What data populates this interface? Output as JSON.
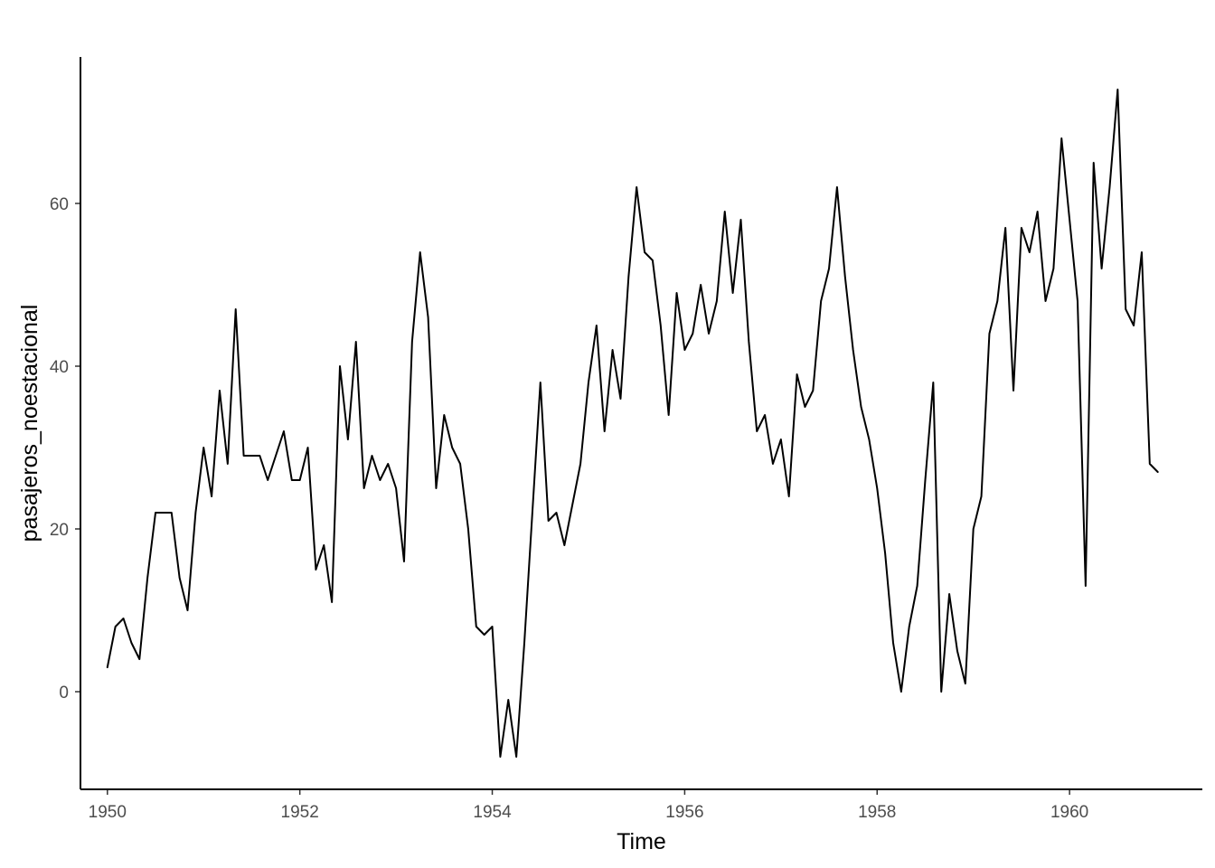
{
  "chart_data": {
    "type": "line",
    "title": "",
    "xlabel": "Time",
    "ylabel": "pasajeros_noestacional",
    "xlim": [
      1949.72,
      1961.38
    ],
    "ylim": [
      -12,
      78
    ],
    "x_ticks": [
      1950,
      1952,
      1954,
      1956,
      1958,
      1960
    ],
    "x_tick_labels": [
      "1950",
      "1952",
      "1954",
      "1956",
      "1958",
      "1960"
    ],
    "y_ticks": [
      0,
      20,
      40,
      60
    ],
    "y_tick_labels": [
      "0",
      "20",
      "40",
      "60"
    ],
    "grid": false,
    "x_start": 1950,
    "frequency": 12,
    "series": [
      {
        "values": [
          3,
          8,
          9,
          6,
          4,
          14,
          22,
          22,
          22,
          14,
          10,
          22,
          30,
          24,
          37,
          28,
          47,
          29,
          29,
          29,
          26,
          29,
          32,
          26,
          26,
          30,
          15,
          18,
          11,
          40,
          31,
          43,
          25,
          29,
          26,
          28,
          25,
          16,
          43,
          54,
          46,
          25,
          34,
          30,
          28,
          20,
          8,
          7,
          8,
          -8,
          -1,
          -8,
          6,
          22,
          38,
          21,
          22,
          18,
          23,
          28,
          38,
          45,
          32,
          42,
          36,
          51,
          62,
          54,
          53,
          45,
          34,
          49,
          42,
          44,
          50,
          44,
          48,
          59,
          49,
          58,
          43,
          32,
          34,
          28,
          31,
          24,
          39,
          35,
          37,
          48,
          52,
          62,
          51,
          42,
          35,
          31,
          25,
          17,
          6,
          0,
          8,
          13,
          26,
          38,
          0,
          12,
          5,
          1,
          20,
          24,
          44,
          48,
          57,
          37,
          57,
          54,
          59,
          48,
          52,
          68,
          58,
          48,
          13,
          65,
          52,
          62,
          74,
          47,
          45,
          54,
          28,
          27
        ]
      }
    ],
    "colors": {
      "line": "#000000",
      "axis": "#000000",
      "tick_text": "#4d4d4d"
    }
  }
}
